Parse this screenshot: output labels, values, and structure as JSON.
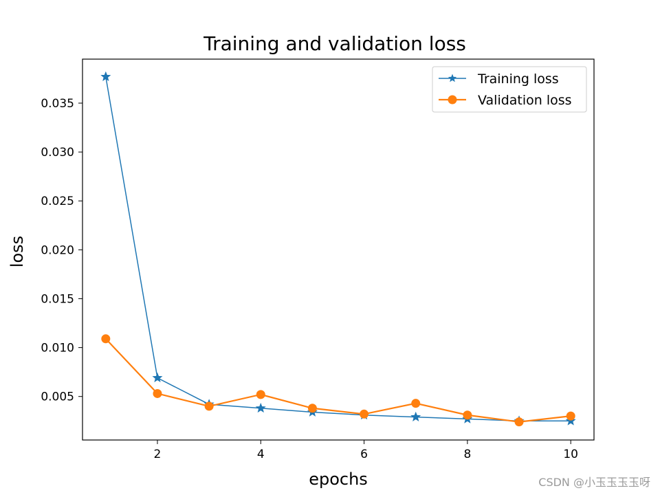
{
  "chart_data": {
    "type": "line",
    "title": "Training and validation loss",
    "xlabel": "epochs",
    "ylabel": "loss",
    "xlim": [
      0.55,
      10.45
    ],
    "ylim": [
      0.00055,
      0.0395
    ],
    "xticks": [
      2,
      4,
      6,
      8,
      10
    ],
    "xtick_labels": [
      "2",
      "4",
      "6",
      "8",
      "10"
    ],
    "yticks": [
      0.005,
      0.01,
      0.015,
      0.02,
      0.025,
      0.03,
      0.035
    ],
    "ytick_labels": [
      "0.005",
      "0.010",
      "0.015",
      "0.020",
      "0.025",
      "0.030",
      "0.035"
    ],
    "legend_position": "top-right",
    "x": [
      1,
      2,
      3,
      4,
      5,
      6,
      7,
      8,
      9,
      10
    ],
    "series": [
      {
        "name": "Training loss",
        "color": "#1f77b4",
        "marker": "star",
        "values": [
          0.0377,
          0.0069,
          0.0042,
          0.0038,
          0.0034,
          0.0031,
          0.0029,
          0.0027,
          0.0025,
          0.0025
        ]
      },
      {
        "name": "Validation loss",
        "color": "#ff7f0e",
        "marker": "circle",
        "values": [
          0.0109,
          0.0053,
          0.004,
          0.0052,
          0.0038,
          0.0032,
          0.0043,
          0.0031,
          0.0024,
          0.003
        ]
      }
    ]
  },
  "watermark": "CSDN @小玉玉玉玉呀"
}
